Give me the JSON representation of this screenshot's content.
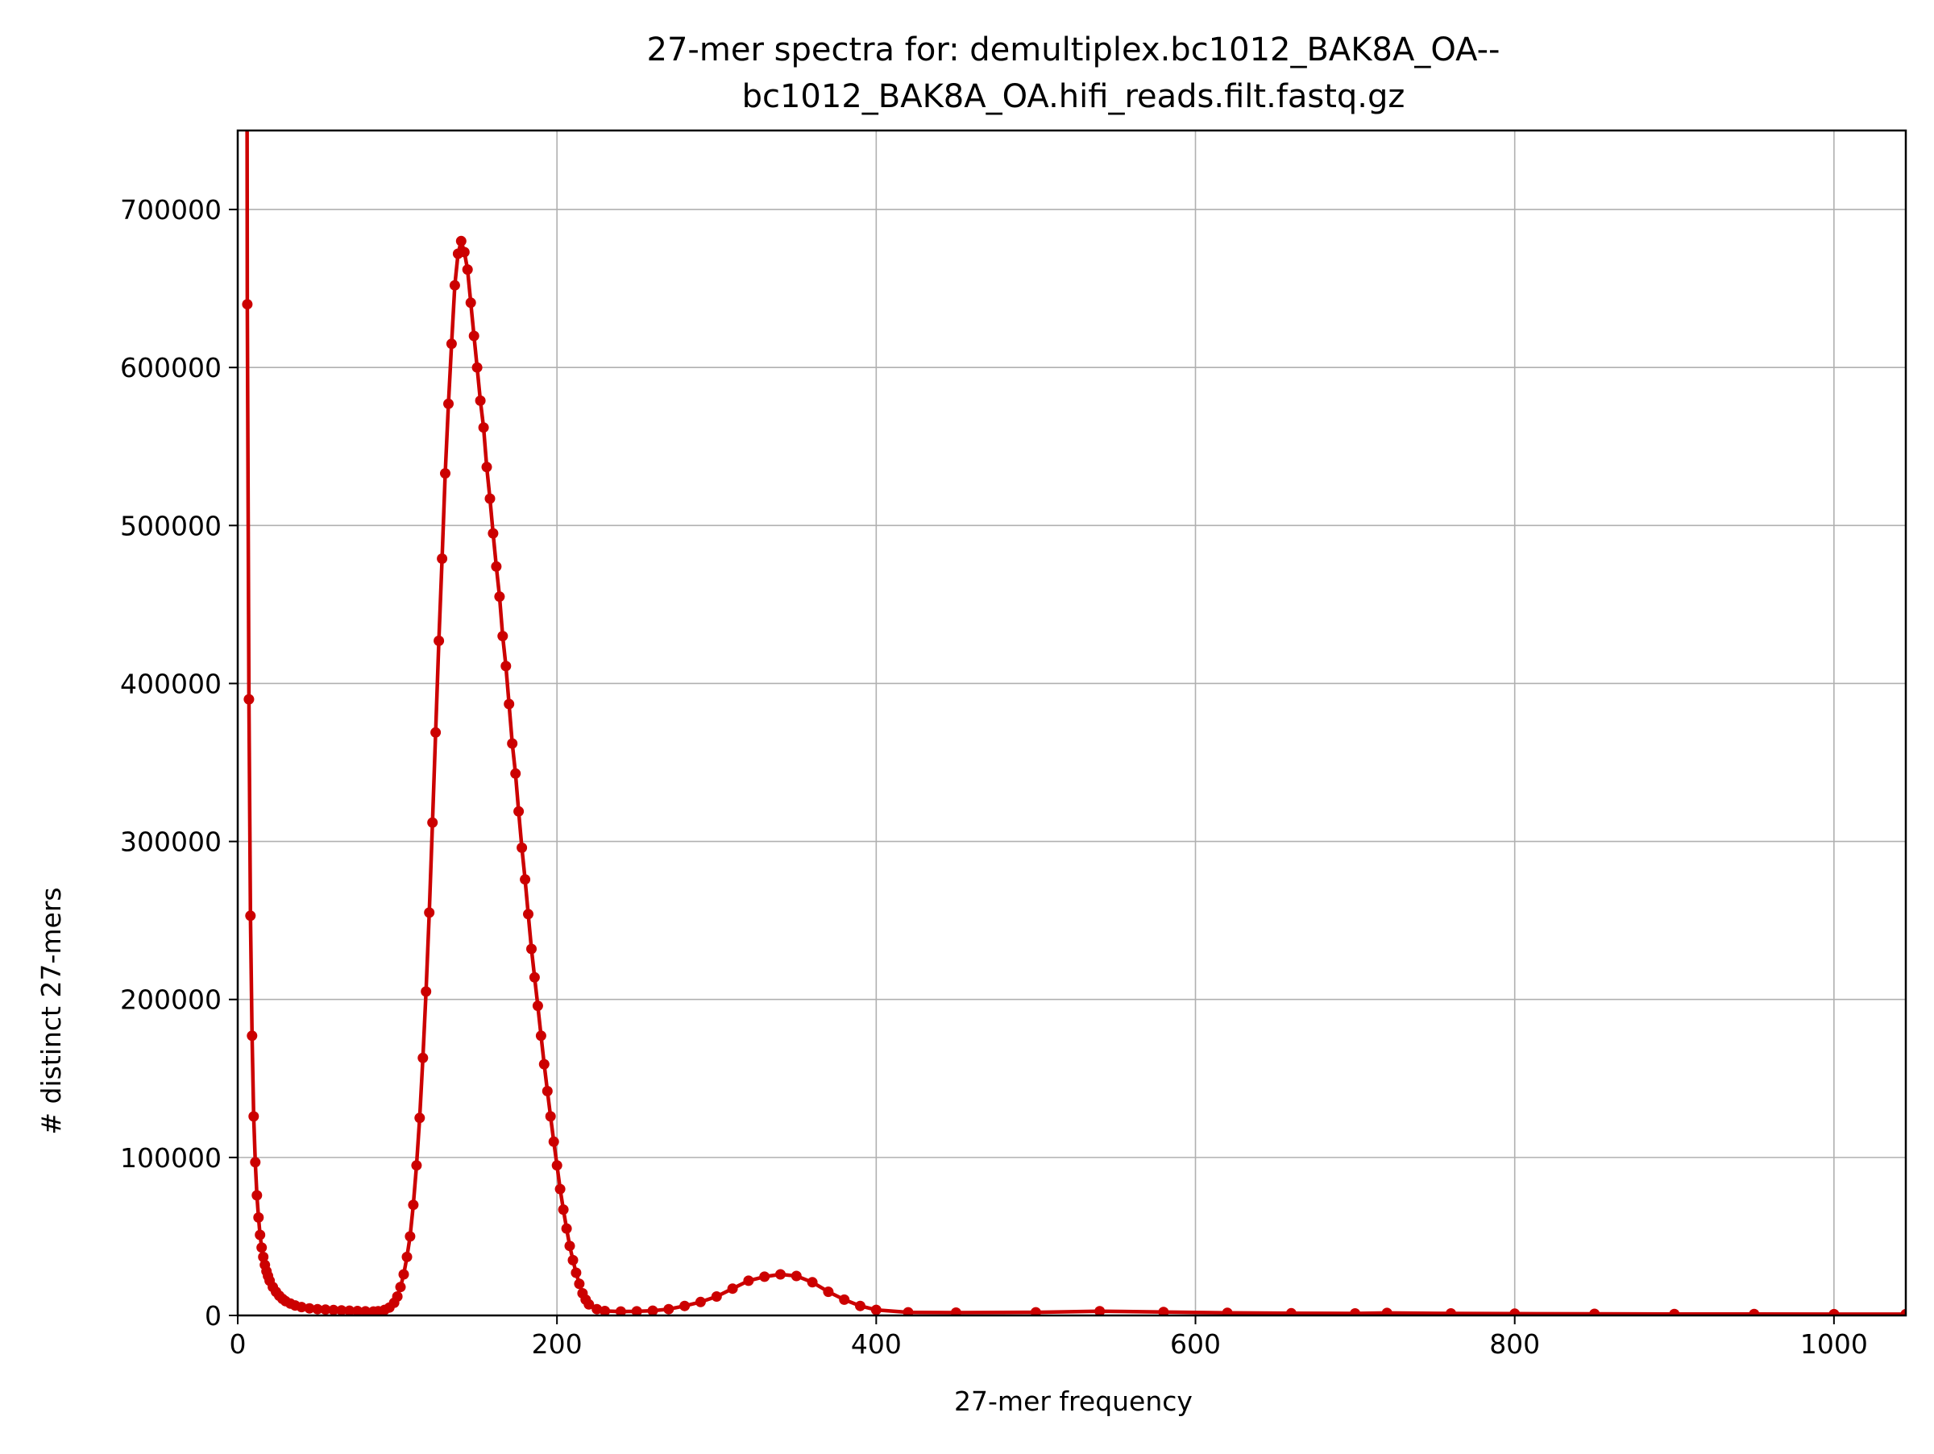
{
  "chart_data": {
    "type": "line",
    "title_line1": "27-mer spectra for: demultiplex.bc1012_BAK8A_OA--",
    "title_line2": "bc1012_BAK8A_OA.hifi_reads.filt.fastq.gz",
    "xlabel": "27-mer frequency",
    "ylabel": "# distinct 27-mers",
    "xlim": [
      0,
      1045
    ],
    "ylim": [
      0,
      750000
    ],
    "xticks": [
      0,
      200,
      400,
      600,
      800,
      1000
    ],
    "yticks": [
      0,
      100000,
      200000,
      300000,
      400000,
      500000,
      600000,
      700000
    ],
    "grid": true,
    "line_color": "#cc0000",
    "marker": "circle",
    "series": [
      {
        "points": [
          [
            5,
            1500000
          ],
          [
            6,
            640000
          ],
          [
            7,
            390000
          ],
          [
            8,
            253000
          ],
          [
            9,
            177000
          ],
          [
            10,
            126000
          ],
          [
            11,
            97000
          ],
          [
            12,
            76000
          ],
          [
            13,
            62000
          ],
          [
            14,
            51000
          ],
          [
            15,
            43000
          ],
          [
            16,
            37000
          ],
          [
            17,
            32000
          ],
          [
            18,
            28000
          ],
          [
            19,
            25000
          ],
          [
            20,
            22000
          ],
          [
            22,
            18000
          ],
          [
            24,
            15000
          ],
          [
            26,
            12500
          ],
          [
            28,
            10500
          ],
          [
            30,
            9000
          ],
          [
            33,
            7500
          ],
          [
            36,
            6300
          ],
          [
            40,
            5300
          ],
          [
            45,
            4500
          ],
          [
            50,
            4000
          ],
          [
            55,
            3700
          ],
          [
            60,
            3400
          ],
          [
            65,
            3200
          ],
          [
            70,
            3000
          ],
          [
            75,
            2800
          ],
          [
            80,
            2600
          ],
          [
            85,
            2500
          ],
          [
            88,
            2700
          ],
          [
            92,
            3500
          ],
          [
            95,
            5000
          ],
          [
            98,
            8000
          ],
          [
            100,
            12000
          ],
          [
            102,
            18000
          ],
          [
            104,
            26000
          ],
          [
            106,
            37000
          ],
          [
            108,
            50000
          ],
          [
            110,
            70000
          ],
          [
            112,
            95000
          ],
          [
            114,
            125000
          ],
          [
            116,
            163000
          ],
          [
            118,
            205000
          ],
          [
            120,
            255000
          ],
          [
            122,
            312000
          ],
          [
            124,
            369000
          ],
          [
            126,
            427000
          ],
          [
            128,
            479000
          ],
          [
            130,
            533000
          ],
          [
            132,
            577000
          ],
          [
            134,
            615000
          ],
          [
            136,
            652000
          ],
          [
            138,
            672000
          ],
          [
            140,
            680000
          ],
          [
            142,
            673000
          ],
          [
            144,
            662000
          ],
          [
            146,
            641000
          ],
          [
            148,
            620000
          ],
          [
            150,
            600000
          ],
          [
            152,
            579000
          ],
          [
            154,
            562000
          ],
          [
            156,
            537000
          ],
          [
            158,
            517000
          ],
          [
            160,
            495000
          ],
          [
            162,
            474000
          ],
          [
            164,
            455000
          ],
          [
            166,
            430000
          ],
          [
            168,
            411000
          ],
          [
            170,
            387000
          ],
          [
            172,
            362000
          ],
          [
            174,
            343000
          ],
          [
            176,
            319000
          ],
          [
            178,
            296000
          ],
          [
            180,
            276000
          ],
          [
            182,
            254000
          ],
          [
            184,
            232000
          ],
          [
            186,
            214000
          ],
          [
            188,
            196000
          ],
          [
            190,
            177000
          ],
          [
            192,
            159000
          ],
          [
            194,
            142000
          ],
          [
            196,
            126000
          ],
          [
            198,
            110000
          ],
          [
            200,
            95000
          ],
          [
            202,
            80000
          ],
          [
            204,
            67000
          ],
          [
            206,
            55000
          ],
          [
            208,
            44000
          ],
          [
            210,
            35000
          ],
          [
            212,
            27000
          ],
          [
            214,
            20000
          ],
          [
            216,
            14000
          ],
          [
            218,
            10000
          ],
          [
            220,
            7000
          ],
          [
            225,
            4000
          ],
          [
            230,
            2800
          ],
          [
            240,
            2500
          ],
          [
            250,
            2600
          ],
          [
            260,
            3000
          ],
          [
            270,
            4000
          ],
          [
            280,
            6000
          ],
          [
            290,
            8500
          ],
          [
            300,
            12000
          ],
          [
            310,
            17000
          ],
          [
            320,
            22000
          ],
          [
            330,
            24500
          ],
          [
            340,
            26000
          ],
          [
            350,
            25000
          ],
          [
            360,
            21000
          ],
          [
            370,
            15000
          ],
          [
            380,
            10000
          ],
          [
            390,
            6000
          ],
          [
            400,
            3500
          ],
          [
            420,
            2000
          ],
          [
            450,
            1800
          ],
          [
            500,
            2000
          ],
          [
            540,
            2700
          ],
          [
            580,
            2200
          ],
          [
            620,
            1700
          ],
          [
            660,
            1400
          ],
          [
            700,
            1300
          ],
          [
            720,
            1600
          ],
          [
            760,
            1300
          ],
          [
            800,
            1100
          ],
          [
            850,
            1000
          ],
          [
            900,
            900
          ],
          [
            950,
            900
          ],
          [
            1000,
            800
          ],
          [
            1045,
            800
          ]
        ]
      }
    ]
  }
}
